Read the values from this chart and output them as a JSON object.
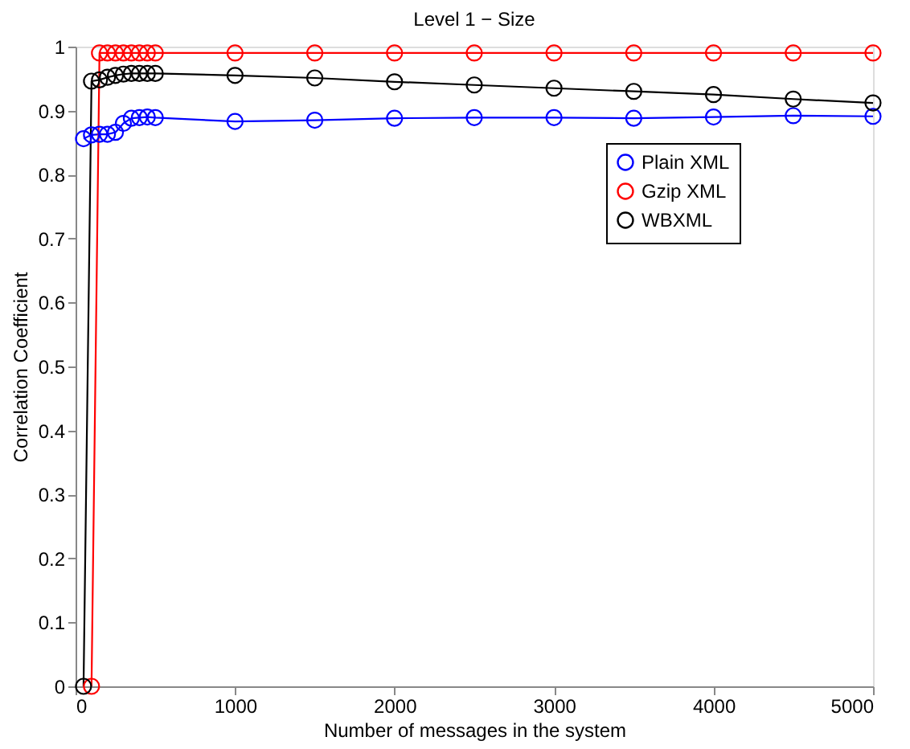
{
  "chart_data": {
    "type": "line",
    "title": "Level 1 − Size",
    "xlabel": "Number of messages in the system",
    "ylabel": "Correlation Coefficient",
    "xlim": [
      0,
      5000
    ],
    "xticks": [
      0,
      1000,
      2000,
      3000,
      4000,
      5000
    ],
    "ylim": [
      0,
      1
    ],
    "yticks": [
      0,
      0.1,
      0.2,
      0.3,
      0.4,
      0.5,
      0.6,
      0.7,
      0.8,
      0.9,
      1
    ],
    "grid": false,
    "legend": "top right",
    "marker": "circle",
    "line_style": "solid",
    "series": [
      {
        "name": "Plain XML",
        "color": "#0000ff",
        "x": [
          50,
          100,
          150,
          200,
          250,
          300,
          350,
          400,
          450,
          500,
          1000,
          1500,
          2000,
          2500,
          3000,
          3500,
          4000,
          4500,
          5000
        ],
        "values": [
          0.856,
          0.862,
          0.863,
          0.863,
          0.866,
          0.88,
          0.888,
          0.889,
          0.89,
          0.889,
          0.883,
          0.885,
          0.888,
          0.889,
          0.889,
          0.888,
          0.89,
          0.892,
          0.891
        ]
      },
      {
        "name": "Gzip XML",
        "color": "#ff0000",
        "x": [
          100,
          150,
          200,
          250,
          300,
          350,
          400,
          450,
          500,
          1000,
          1500,
          2000,
          2500,
          3000,
          3500,
          4000,
          4500,
          5000
        ],
        "values": [
          0,
          0.99,
          0.99,
          0.99,
          0.99,
          0.99,
          0.99,
          0.99,
          0.99,
          0.99,
          0.99,
          0.99,
          0.99,
          0.99,
          0.99,
          0.99,
          0.99,
          0.99
        ]
      },
      {
        "name": "WBXML",
        "color": "#000000",
        "x": [
          50,
          100,
          150,
          200,
          250,
          300,
          350,
          400,
          450,
          500,
          1000,
          1500,
          2000,
          2500,
          3000,
          3500,
          4000,
          4500,
          5000
        ],
        "values": [
          0,
          0.946,
          0.948,
          0.952,
          0.955,
          0.957,
          0.958,
          0.958,
          0.958,
          0.958,
          0.955,
          0.951,
          0.945,
          0.94,
          0.935,
          0.93,
          0.925,
          0.918,
          0.912
        ]
      }
    ]
  }
}
